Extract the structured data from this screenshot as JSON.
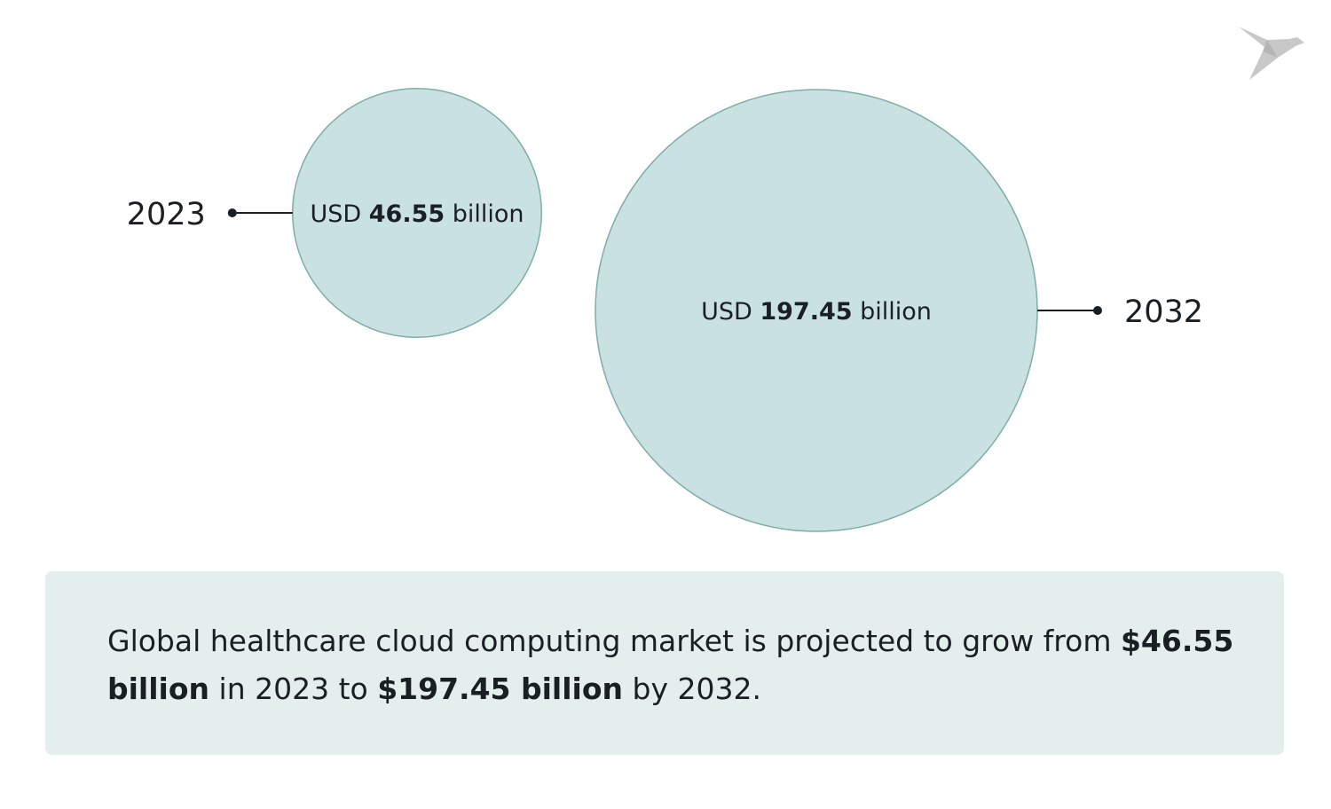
{
  "chart_data": {
    "type": "bubble",
    "series": [
      {
        "year": "2023",
        "prefix": "USD",
        "value": 46.55,
        "value_label": "46.55",
        "unit": "billion"
      },
      {
        "year": "2032",
        "prefix": "USD",
        "value": 197.45,
        "value_label": "197.45",
        "unit": "billion"
      }
    ],
    "colors": {
      "bubble_fill": "#c9e1e1",
      "bubble_stroke": "#7fada8",
      "text": "#1a1f24",
      "card": "#e4eeed",
      "logo": "#c8c8c8"
    }
  },
  "summary": {
    "part1": "Global healthcare cloud computing market is projected to grow from ",
    "value1": "$46.55 billion",
    "part2": " in 2023 to ",
    "value2": "$197.45 billion",
    "part3": " by 2032."
  },
  "logo": {
    "icon": "origami-bird-icon"
  }
}
